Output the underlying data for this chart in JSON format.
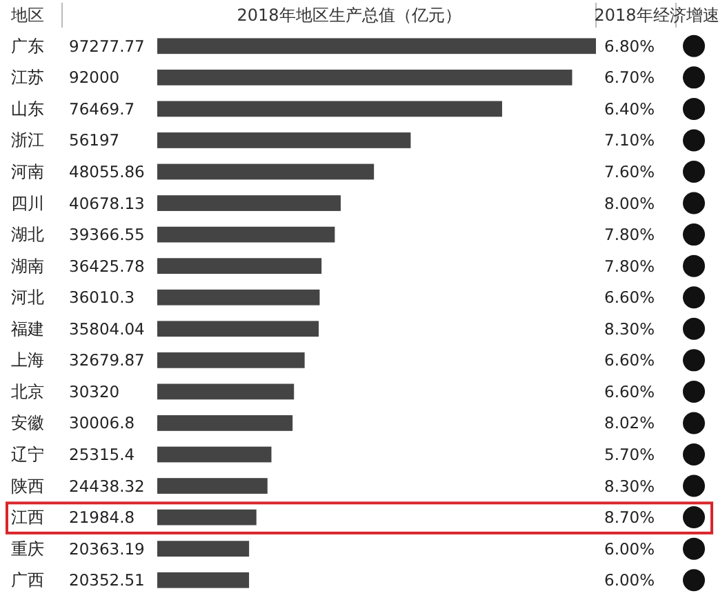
{
  "chart_data": [
    {
      "type": "bar",
      "orientation": "horizontal",
      "title": "2018年地区生产总值（亿元）",
      "ylabel": "地区",
      "data_labels": true,
      "categories": [
        "广东",
        "江苏",
        "山东",
        "浙江",
        "河南",
        "四川",
        "湖北",
        "湖南",
        "河北",
        "福建",
        "上海",
        "北京",
        "安徽",
        "辽宁",
        "陕西",
        "江西",
        "重庆",
        "广西"
      ],
      "values": [
        97277.77,
        92000,
        76469.7,
        56197,
        48055.86,
        40678.13,
        39366.55,
        36425.78,
        36010.3,
        35804.04,
        32679.87,
        30320,
        30006.8,
        25315.4,
        24438.32,
        21984.8,
        20363.19,
        20352.51
      ],
      "color": "#444444"
    },
    {
      "type": "other",
      "title": "2018年经济增速",
      "annotations": [
        "6.80%",
        "6.70%",
        "6.40%",
        "7.10%",
        "7.60%",
        "8.00%",
        "7.80%",
        "7.80%",
        "6.60%",
        "8.30%",
        "6.60%",
        "6.60%",
        "8.02%",
        "5.70%",
        "8.30%",
        "8.70%",
        "6.00%",
        "6.00%"
      ]
    }
  ]
}
